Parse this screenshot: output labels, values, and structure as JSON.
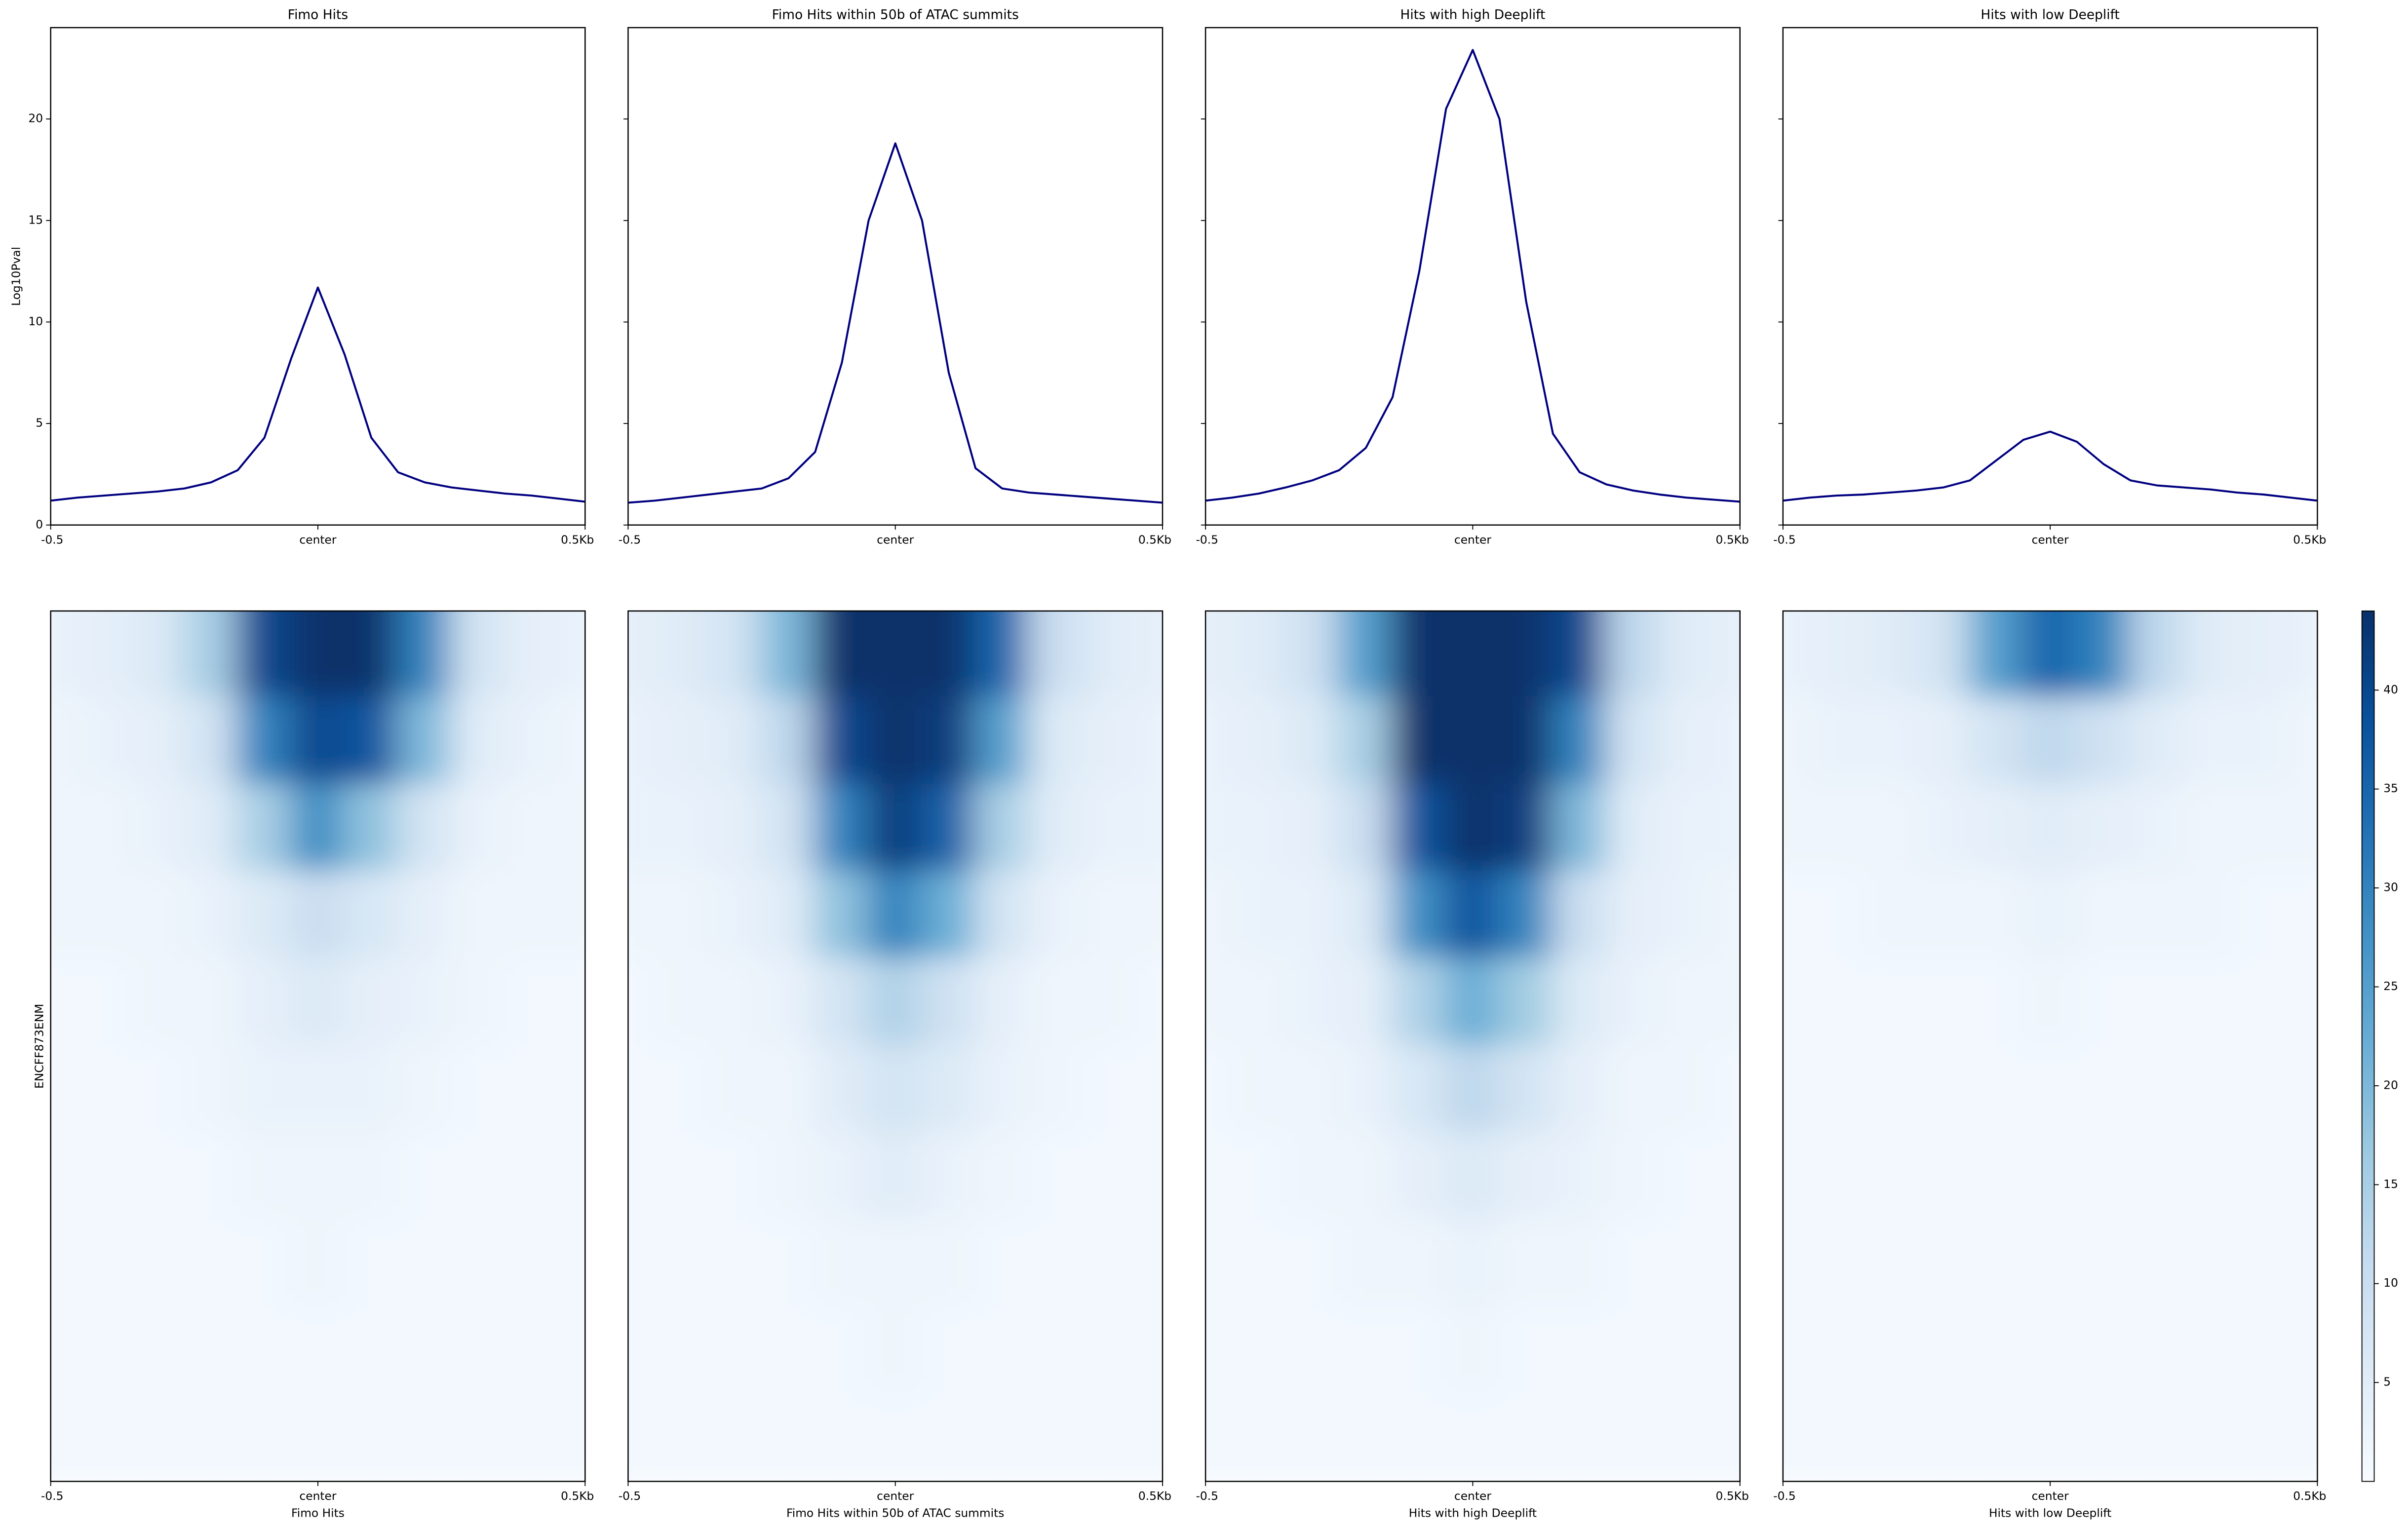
{
  "chart_data": [
    {
      "type": "line",
      "title": "Fimo Hits",
      "ylabel": "Log10Pval",
      "color": "#000080",
      "x": [
        -500,
        -450,
        -400,
        -350,
        -300,
        -250,
        -200,
        -150,
        -100,
        -50,
        0,
        50,
        100,
        150,
        200,
        250,
        300,
        350,
        400,
        450,
        500
      ],
      "values": [
        1.2,
        1.35,
        1.45,
        1.55,
        1.65,
        1.8,
        2.1,
        2.7,
        4.3,
        8.2,
        11.7,
        8.4,
        4.3,
        2.6,
        2.1,
        1.85,
        1.7,
        1.55,
        1.45,
        1.3,
        1.15
      ],
      "xlim": [
        -500,
        500
      ],
      "ylim": [
        0,
        24.5
      ],
      "xticks": [
        {
          "value": -500,
          "label": "-0.5"
        },
        {
          "value": 0,
          "label": "center"
        },
        {
          "value": 500,
          "label": "0.5Kb"
        }
      ],
      "yticks": [
        0,
        5,
        10,
        15,
        20
      ]
    },
    {
      "type": "line",
      "title": "Fimo Hits within 50b of ATAC summits",
      "color": "#000080",
      "sharey": true,
      "x": [
        -500,
        -450,
        -400,
        -350,
        -300,
        -250,
        -200,
        -150,
        -100,
        -50,
        0,
        50,
        100,
        150,
        200,
        250,
        300,
        350,
        400,
        450,
        500
      ],
      "values": [
        1.1,
        1.2,
        1.35,
        1.5,
        1.65,
        1.8,
        2.3,
        3.6,
        8,
        15,
        18.8,
        15,
        7.5,
        2.8,
        1.8,
        1.6,
        1.5,
        1.4,
        1.3,
        1.2,
        1.1
      ],
      "xlim": [
        -500,
        500
      ],
      "ylim": [
        0,
        24.5
      ],
      "xticks": [
        {
          "value": -500,
          "label": "-0.5"
        },
        {
          "value": 0,
          "label": "center"
        },
        {
          "value": 500,
          "label": "0.5Kb"
        }
      ]
    },
    {
      "type": "line",
      "title": "Hits with high Deeplift",
      "color": "#000080",
      "sharey": true,
      "x": [
        -500,
        -450,
        -400,
        -350,
        -300,
        -250,
        -200,
        -150,
        -100,
        -50,
        0,
        50,
        100,
        150,
        200,
        250,
        300,
        350,
        400,
        450,
        500
      ],
      "values": [
        1.2,
        1.35,
        1.55,
        1.85,
        2.2,
        2.7,
        3.8,
        6.3,
        12.5,
        20.5,
        23.4,
        20,
        11,
        4.5,
        2.6,
        2.0,
        1.7,
        1.5,
        1.35,
        1.25,
        1.15
      ],
      "xlim": [
        -500,
        500
      ],
      "ylim": [
        0,
        24.5
      ],
      "xticks": [
        {
          "value": -500,
          "label": "-0.5"
        },
        {
          "value": 0,
          "label": "center"
        },
        {
          "value": 500,
          "label": "0.5Kb"
        }
      ]
    },
    {
      "type": "line",
      "title": "Hits with low Deeplift",
      "color": "#000080",
      "sharey": true,
      "x": [
        -500,
        -450,
        -400,
        -350,
        -300,
        -250,
        -200,
        -150,
        -100,
        -50,
        0,
        50,
        100,
        150,
        200,
        250,
        300,
        350,
        400,
        450,
        500
      ],
      "values": [
        1.2,
        1.35,
        1.45,
        1.5,
        1.6,
        1.7,
        1.85,
        2.2,
        3.2,
        4.2,
        4.6,
        4.1,
        3.0,
        2.2,
        1.95,
        1.85,
        1.75,
        1.6,
        1.5,
        1.35,
        1.2
      ],
      "xlim": [
        -500,
        500
      ],
      "ylim": [
        0,
        24.5
      ],
      "xticks": [
        {
          "value": -500,
          "label": "-0.5"
        },
        {
          "value": 0,
          "label": "center"
        },
        {
          "value": 500,
          "label": "0.5Kb"
        }
      ]
    },
    {
      "type": "heatmap",
      "xlabel": "Fimo Hits",
      "ylabel": "ENCFF873ENM",
      "x": [
        -500,
        -400,
        -300,
        -200,
        -100,
        0,
        100,
        200,
        300,
        400,
        500
      ],
      "xlim": [
        -500,
        500
      ],
      "xticks": [
        {
          "value": -500,
          "label": "-0.5"
        },
        {
          "value": 0,
          "label": "center"
        },
        {
          "value": 500,
          "label": "0.5Kb"
        }
      ],
      "values": [
        [
          3,
          4,
          6,
          15,
          40,
          44,
          44,
          30,
          8,
          4,
          3
        ],
        [
          2,
          3,
          4,
          8,
          30,
          40,
          38,
          20,
          5,
          3,
          2
        ],
        [
          2,
          2,
          3,
          5,
          15,
          28,
          18,
          8,
          3,
          2,
          2
        ],
        [
          2,
          2,
          2,
          3,
          6,
          10,
          7,
          4,
          2,
          2,
          2
        ],
        [
          1,
          1,
          2,
          2,
          4,
          6,
          4,
          3,
          2,
          1,
          1
        ],
        [
          1,
          1,
          1,
          2,
          3,
          3,
          3,
          2,
          1,
          1,
          1
        ],
        [
          1,
          1,
          1,
          1,
          2,
          2,
          2,
          1,
          1,
          1,
          1
        ],
        [
          1,
          1,
          1,
          1,
          1,
          2,
          1,
          1,
          1,
          1,
          1
        ],
        [
          1,
          1,
          1,
          1,
          1,
          1,
          1,
          1,
          1,
          1,
          1
        ],
        [
          1,
          1,
          1,
          1,
          1,
          1,
          1,
          1,
          1,
          1,
          1
        ]
      ]
    },
    {
      "type": "heatmap",
      "xlabel": "Fimo Hits within 50b of ATAC summits",
      "x": [
        -500,
        -400,
        -300,
        -200,
        -100,
        0,
        100,
        200,
        300,
        400,
        500
      ],
      "xlim": [
        -500,
        500
      ],
      "xticks": [
        {
          "value": -500,
          "label": "-0.5"
        },
        {
          "value": 0,
          "label": "center"
        },
        {
          "value": 500,
          "label": "0.5Kb"
        }
      ],
      "values": [
        [
          4,
          5,
          8,
          20,
          44,
          44,
          44,
          35,
          10,
          5,
          4
        ],
        [
          3,
          4,
          5,
          12,
          40,
          44,
          42,
          25,
          6,
          4,
          3
        ],
        [
          3,
          3,
          4,
          8,
          30,
          42,
          36,
          15,
          5,
          3,
          3
        ],
        [
          2,
          2,
          3,
          5,
          18,
          30,
          22,
          8,
          3,
          2,
          2
        ],
        [
          1,
          2,
          2,
          3,
          8,
          14,
          9,
          4,
          2,
          2,
          1
        ],
        [
          1,
          1,
          2,
          2,
          5,
          8,
          6,
          3,
          2,
          1,
          1
        ],
        [
          1,
          1,
          1,
          2,
          3,
          5,
          3,
          2,
          1,
          1,
          1
        ],
        [
          1,
          1,
          1,
          1,
          2,
          2,
          2,
          1,
          1,
          1,
          1
        ],
        [
          1,
          1,
          1,
          1,
          1,
          2,
          1,
          1,
          1,
          1,
          1
        ],
        [
          1,
          1,
          1,
          1,
          1,
          1,
          1,
          1,
          1,
          1,
          1
        ]
      ]
    },
    {
      "type": "heatmap",
      "xlabel": "Hits with high Deeplift",
      "x": [
        -500,
        -400,
        -300,
        -200,
        -100,
        0,
        100,
        200,
        300,
        400,
        500
      ],
      "xlim": [
        -500,
        500
      ],
      "xticks": [
        {
          "value": -500,
          "label": "-0.5"
        },
        {
          "value": 0,
          "label": "center"
        },
        {
          "value": 500,
          "label": "0.5Kb"
        }
      ],
      "values": [
        [
          4,
          5,
          9,
          25,
          44,
          44,
          44,
          40,
          12,
          5,
          4
        ],
        [
          3,
          4,
          6,
          15,
          44,
          44,
          44,
          30,
          8,
          4,
          3
        ],
        [
          3,
          3,
          4,
          10,
          38,
          44,
          42,
          20,
          5,
          3,
          3
        ],
        [
          2,
          3,
          3,
          6,
          28,
          38,
          30,
          10,
          4,
          3,
          2
        ],
        [
          2,
          2,
          3,
          4,
          14,
          22,
          16,
          6,
          3,
          2,
          2
        ],
        [
          1,
          2,
          2,
          3,
          7,
          12,
          8,
          4,
          2,
          2,
          1
        ],
        [
          1,
          1,
          2,
          2,
          4,
          6,
          4,
          3,
          2,
          1,
          1
        ],
        [
          1,
          1,
          1,
          2,
          2,
          3,
          2,
          2,
          1,
          1,
          1
        ],
        [
          1,
          1,
          1,
          1,
          1,
          2,
          1,
          1,
          1,
          1,
          1
        ],
        [
          1,
          1,
          1,
          1,
          1,
          1,
          1,
          1,
          1,
          1,
          1
        ]
      ]
    },
    {
      "type": "heatmap",
      "xlabel": "Hits with low Deeplift",
      "x": [
        -500,
        -400,
        -300,
        -200,
        -100,
        0,
        100,
        200,
        300,
        400,
        500
      ],
      "xlim": [
        -500,
        500
      ],
      "xticks": [
        {
          "value": -500,
          "label": "-0.5"
        },
        {
          "value": 0,
          "label": "center"
        },
        {
          "value": 500,
          "label": "0.5Kb"
        }
      ],
      "values": [
        [
          3,
          4,
          5,
          8,
          25,
          35,
          30,
          12,
          5,
          4,
          3
        ],
        [
          2,
          3,
          3,
          4,
          8,
          12,
          9,
          5,
          3,
          3,
          2
        ],
        [
          2,
          2,
          2,
          3,
          4,
          5,
          4,
          3,
          2,
          2,
          2
        ],
        [
          1,
          1,
          2,
          2,
          2,
          3,
          2,
          2,
          2,
          1,
          1
        ],
        [
          1,
          1,
          1,
          1,
          1,
          2,
          1,
          1,
          1,
          1,
          1
        ],
        [
          1,
          1,
          1,
          1,
          1,
          1,
          1,
          1,
          1,
          1,
          1
        ],
        [
          1,
          1,
          1,
          1,
          1,
          1,
          1,
          1,
          1,
          1,
          1
        ],
        [
          1,
          1,
          1,
          1,
          1,
          1,
          1,
          1,
          1,
          1,
          1
        ],
        [
          1,
          1,
          1,
          1,
          1,
          1,
          1,
          1,
          1,
          1,
          1
        ],
        [
          1,
          1,
          1,
          1,
          1,
          1,
          1,
          1,
          1,
          1,
          1
        ]
      ]
    },
    {
      "type": "colorbar",
      "ylim": [
        0,
        44
      ],
      "yticks": [
        5,
        10,
        15,
        20,
        25,
        30,
        35,
        40
      ],
      "colors": [
        "#f7fbff",
        "#deebf7",
        "#c6dbef",
        "#9ecae1",
        "#6baed6",
        "#4292c6",
        "#2171b5",
        "#08519c",
        "#08306b"
      ]
    }
  ]
}
